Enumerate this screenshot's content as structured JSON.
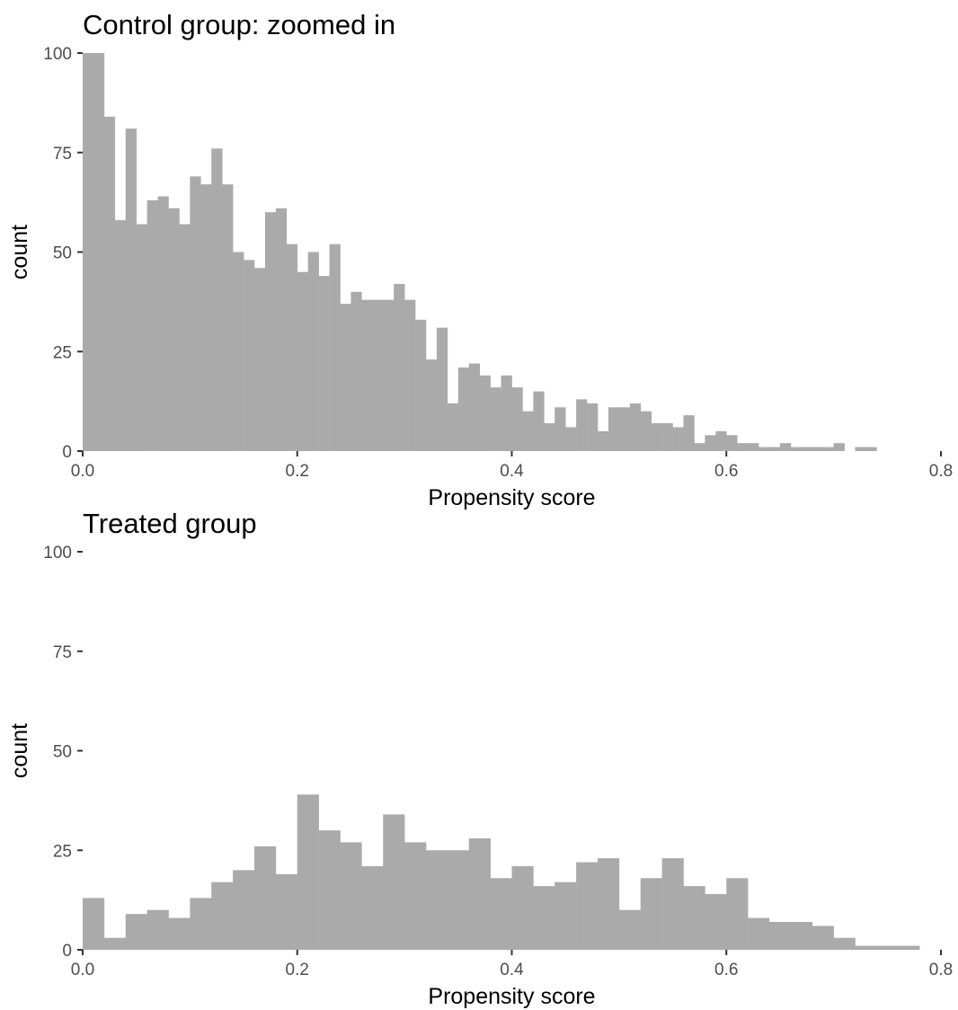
{
  "chart_data": [
    {
      "type": "bar",
      "title": "Control group: zoomed in",
      "xlabel": "Propensity score",
      "ylabel": "count",
      "xlim": [
        0,
        0.8
      ],
      "ylim": [
        0,
        100
      ],
      "x_ticks": [
        "0.0",
        "0.2",
        "0.4",
        "0.6",
        "0.8"
      ],
      "y_ticks": [
        "0",
        "25",
        "50",
        "75",
        "100"
      ],
      "grid": false,
      "bar_color": "#aaaaaa",
      "bin_width": 0.01,
      "bin_start": 0.0,
      "values": [
        100,
        100,
        84,
        58,
        81,
        57,
        63,
        64,
        61,
        57,
        69,
        67,
        76,
        67,
        50,
        48,
        46,
        60,
        61,
        52,
        45,
        50,
        44,
        52,
        37,
        40,
        38,
        38,
        38,
        42,
        38,
        33,
        23,
        31,
        12,
        21,
        22,
        19,
        16,
        19,
        16,
        10,
        15,
        7,
        11,
        6,
        13,
        12,
        5,
        11,
        11,
        12,
        10,
        7,
        7,
        6,
        9,
        2,
        4,
        5,
        4,
        2,
        2,
        1,
        1,
        2,
        1,
        1,
        1,
        1,
        2,
        0,
        1,
        1
      ]
    },
    {
      "type": "bar",
      "title": "Treated group",
      "xlabel": "Propensity score",
      "ylabel": "count",
      "xlim": [
        0,
        0.8
      ],
      "ylim": [
        0,
        100
      ],
      "x_ticks": [
        "0.0",
        "0.2",
        "0.4",
        "0.6",
        "0.8"
      ],
      "y_ticks": [
        "0",
        "25",
        "50",
        "75",
        "100"
      ],
      "grid": false,
      "bar_color": "#aaaaaa",
      "bin_width": 0.02,
      "bin_start": 0.0,
      "values": [
        13,
        3,
        9,
        10,
        8,
        13,
        17,
        20,
        26,
        19,
        39,
        30,
        27,
        21,
        34,
        27,
        25,
        25,
        28,
        18,
        21,
        16,
        17,
        22,
        23,
        10,
        18,
        23,
        16,
        14,
        18,
        8,
        7,
        7,
        6,
        3,
        1,
        1,
        1
      ]
    }
  ]
}
